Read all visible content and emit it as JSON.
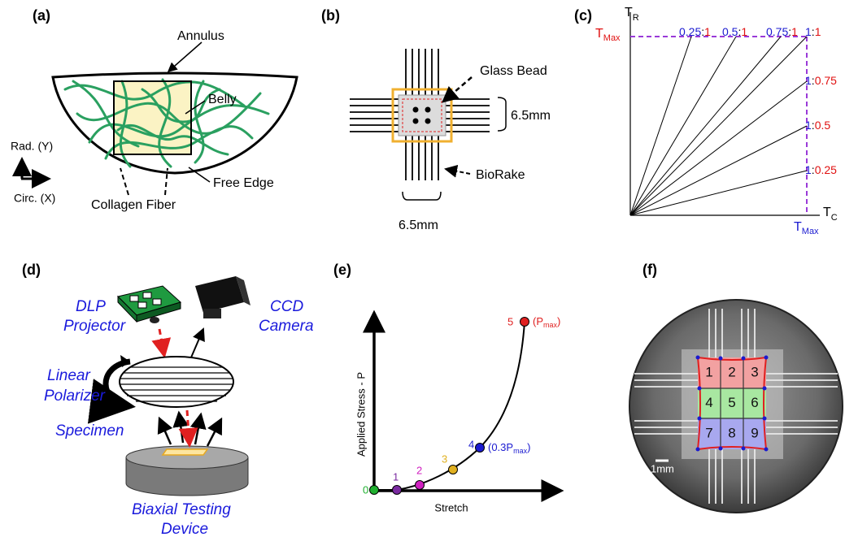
{
  "panels": {
    "a": {
      "label": "(a)",
      "annulus": "Annulus",
      "belly": "Belly",
      "free_edge": "Free Edge",
      "collagen_fiber": "Collagen Fiber",
      "radial": "Rad. (Y)",
      "circ": "Circ. (X)"
    },
    "b": {
      "label": "(b)",
      "glass_bead": "Glass Bead",
      "dim_right": "6.5mm",
      "biorake": "BioRake",
      "dim_bottom": "6.5mm"
    },
    "c": {
      "label": "(c)",
      "y_axis": {
        "base": "T",
        "sub": "R"
      },
      "x_axis": {
        "base": "T",
        "sub": "C"
      },
      "tmax_r": {
        "base": "T",
        "sub": "Max"
      },
      "tmax_c": {
        "base": "T",
        "sub": "Max"
      },
      "separator": ":",
      "ratios": [
        {
          "c": "0.25",
          "r": "1"
        },
        {
          "c": "0.5",
          "r": "1"
        },
        {
          "c": "0.75",
          "r": "1"
        },
        {
          "c": "1",
          "r": "1"
        },
        {
          "c": "1",
          "r": "0.75"
        },
        {
          "c": "1",
          "r": "0.5"
        },
        {
          "c": "1",
          "r": "0.25"
        }
      ]
    },
    "d": {
      "label": "(d)",
      "projector": [
        "DLP",
        "Projector"
      ],
      "camera": [
        "CCD",
        "Camera"
      ],
      "polarizer": [
        "Linear",
        "Polarizer"
      ],
      "specimen": "Specimen",
      "device": [
        "Biaxial Testing",
        "Device"
      ]
    },
    "e": {
      "label": "(e)",
      "y_axis": "Applied Stress - P",
      "x_axis": "Stretch",
      "points": [
        "0",
        "1",
        "2",
        "3",
        "4",
        "5"
      ],
      "point_notes": {
        "4": {
          "open": "(0.3P",
          "sub": "max",
          "close": ")"
        },
        "5": {
          "open": "(P",
          "sub": "max",
          "close": ")"
        }
      }
    },
    "f": {
      "label": "(f)",
      "cells": [
        "1",
        "2",
        "3",
        "4",
        "5",
        "6",
        "7",
        "8",
        "9"
      ],
      "scale": "1mm"
    }
  }
}
